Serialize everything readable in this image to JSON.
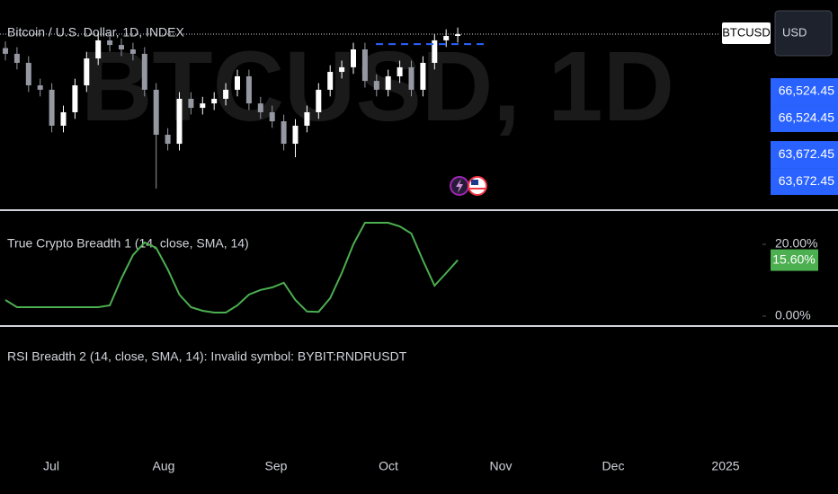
{
  "chart_data": [
    {
      "type": "candlestick",
      "title": "Bitcoin / U.S. Dollar, 1D, INDEX",
      "watermark": "BTCUSD, 1D",
      "categories": [
        null,
        null,
        null,
        null,
        null,
        null,
        null,
        null,
        null,
        null,
        null,
        null,
        null,
        null,
        null,
        null,
        null,
        null,
        null,
        null,
        null,
        null,
        null,
        null,
        null,
        null,
        null,
        null,
        null,
        null,
        null,
        null,
        null,
        null,
        null,
        null,
        null,
        null,
        null,
        null
      ],
      "series": [
        {
          "up_color": "#ffffff",
          "down_color": "#9598a1",
          "open": [
            68500,
            68240,
            67830,
            66810,
            66610,
            64980,
            65590,
            66810,
            68030,
            68850,
            68640,
            68440,
            68240,
            66610,
            64570,
            64160,
            66200,
            65790,
            65990,
            66200,
            66610,
            67220,
            65990,
            65590,
            65180,
            64160,
            64980,
            65590,
            66610,
            67420,
            67630,
            68440,
            67010,
            66610,
            67220,
            67630,
            66610,
            67830,
            68850,
            69050
          ],
          "high": [
            68800,
            68540,
            68130,
            67110,
            66910,
            65890,
            67110,
            68330,
            69150,
            69150,
            68940,
            68740,
            68540,
            66910,
            64870,
            66500,
            66500,
            66290,
            66500,
            66910,
            67520,
            67520,
            66290,
            65890,
            65480,
            65280,
            65890,
            66910,
            67720,
            67930,
            68740,
            68740,
            67310,
            67520,
            67930,
            67930,
            68130,
            69150,
            69350,
            69430
          ],
          "low": [
            67940,
            67530,
            66510,
            66310,
            64680,
            64680,
            65290,
            66510,
            67730,
            68340,
            68140,
            67940,
            66310,
            62130,
            63860,
            63860,
            65490,
            65490,
            65690,
            65900,
            66310,
            65690,
            65290,
            64880,
            63860,
            63550,
            64680,
            65290,
            66310,
            67120,
            67330,
            66710,
            66310,
            66310,
            66920,
            66310,
            66310,
            67530,
            68550,
            68750
          ],
          "close": [
            68240,
            67830,
            66810,
            66610,
            64980,
            65590,
            66810,
            68030,
            68850,
            68640,
            68440,
            68240,
            66610,
            64570,
            64160,
            66200,
            65790,
            65990,
            66200,
            66610,
            67220,
            65990,
            65590,
            65180,
            64160,
            64980,
            65590,
            66610,
            67420,
            67630,
            68440,
            67010,
            66610,
            67220,
            67630,
            66610,
            67830,
            68850,
            69050,
            69130
          ]
        }
      ],
      "levels": [
        {
          "value": 68680,
          "color": "#2962ff"
        }
      ],
      "price_labels": [
        {
          "value": 66524.45,
          "label": "66,524.45"
        },
        {
          "value": 66524.45,
          "label": "66,524.45"
        },
        {
          "value": 63672.45,
          "label": "63,672.45"
        },
        {
          "value": 63672.45,
          "label": "63,672.45"
        }
      ],
      "label_color": "#2962ff",
      "ylim": [
        61190,
        70680
      ]
    },
    {
      "type": "line",
      "title": "True Crypto Breadth 1 (14, close, SMA, 14)",
      "categories": [
        null,
        null,
        null,
        null,
        null,
        null,
        null,
        null,
        null,
        null,
        null,
        null,
        null,
        null,
        null,
        null,
        null,
        null,
        null,
        null,
        null,
        null,
        null,
        null,
        null,
        null,
        null,
        null,
        null,
        null,
        null,
        null,
        null,
        null,
        null,
        null,
        null,
        null,
        null,
        null
      ],
      "series": [
        {
          "color": "#4caf50",
          "values": [
            4.5,
            2.5,
            2.5,
            2.5,
            2.5,
            2.5,
            2.5,
            2.5,
            2.5,
            3,
            10.5,
            17,
            20.5,
            19,
            13,
            6,
            2.5,
            1.5,
            1,
            1,
            3,
            6,
            7.3,
            8,
            9.3,
            4.5,
            1.3,
            1.2,
            5,
            12,
            20,
            26,
            26,
            26,
            25,
            23,
            15.5,
            8.5,
            12,
            15.6
          ],
          "value_labels": [
            null,
            null,
            null,
            null,
            null,
            null,
            null,
            null,
            null,
            null,
            null,
            null,
            null,
            null,
            null,
            null,
            null,
            null,
            null,
            null,
            null,
            null,
            null,
            null,
            null,
            null,
            null,
            null,
            null,
            null,
            null,
            null,
            null,
            null,
            null,
            null,
            null,
            null,
            null,
            "15.60%"
          ]
        }
      ],
      "ylim": [
        -2.5,
        29
      ],
      "yticks": [
        {
          "value": 20,
          "label": "20.00%"
        },
        {
          "value": 0,
          "label": "0.00%"
        }
      ]
    }
  ],
  "third_pane": {
    "title": "RSI Breadth 2 (14, close, SMA, 14): Invalid symbol: BYBIT:RNDRUSDT"
  },
  "toolbar": {
    "symbol": "BTCUSD",
    "currency": "USD"
  },
  "time_axis": [
    "Jul",
    "Aug",
    "Sep",
    "Oct",
    "Nov",
    "Dec",
    "2025"
  ]
}
